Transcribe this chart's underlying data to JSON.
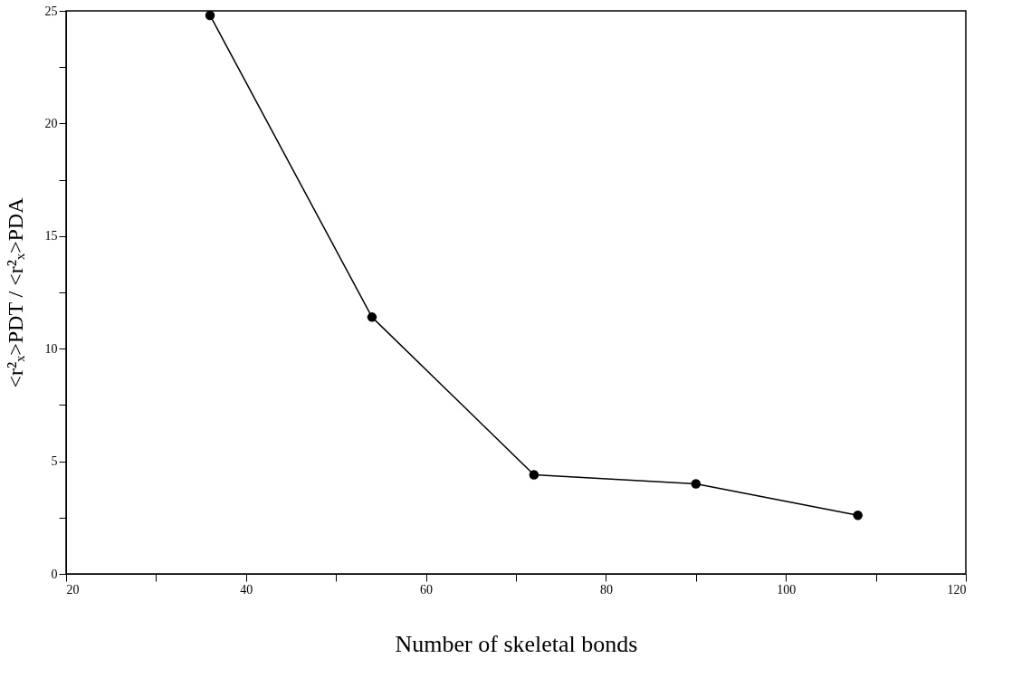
{
  "chart_data": {
    "type": "line",
    "xlabel": "Number of skeletal bonds",
    "ylabel": "<r²ₓ>PDT / <r²ₓ>PDA",
    "x": [
      36,
      54,
      72,
      90,
      108
    ],
    "series": [
      {
        "color": "#000000",
        "values": [
          24.8,
          11.4,
          4.4,
          4.0,
          2.6
        ]
      }
    ],
    "marker": "circle",
    "line_style": "solid",
    "grid": false,
    "xlim": [
      20,
      120
    ],
    "xticks": [
      20,
      {
        "value": 30,
        "label": null
      },
      40,
      {
        "value": 50,
        "label": null
      },
      60,
      {
        "value": 70,
        "label": null
      },
      80,
      {
        "value": 90,
        "label": null
      },
      100,
      {
        "value": 110,
        "label": null
      },
      120
    ],
    "ylim": [
      0,
      25
    ],
    "yticks": [
      0,
      {
        "value": 2.5,
        "label": null
      },
      5,
      {
        "value": 7.5,
        "label": null
      },
      10,
      {
        "value": 12.5,
        "label": null
      },
      15,
      {
        "value": 17.5,
        "label": null
      },
      20,
      {
        "value": 22.5,
        "label": null
      },
      25
    ]
  }
}
